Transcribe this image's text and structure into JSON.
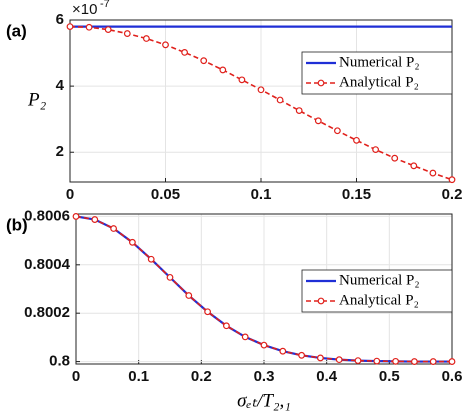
{
  "chart_data": [
    {
      "type": "line",
      "panel_label": "(a)",
      "y_label": "P₂",
      "y_multiplier": "×10",
      "y_multiplier_exp": "-7",
      "x": [
        0,
        0.01,
        0.02,
        0.03,
        0.04,
        0.05,
        0.06,
        0.07,
        0.08,
        0.09,
        0.1,
        0.11,
        0.12,
        0.13,
        0.14,
        0.15,
        0.16,
        0.17,
        0.18,
        0.19,
        0.2
      ],
      "series": [
        {
          "name": "Numerical P₂",
          "color": "#1f2fd6",
          "dash": false,
          "marker": "none",
          "values": [
            5.8,
            5.8,
            5.8,
            5.8,
            5.8,
            5.8,
            5.8,
            5.8,
            5.8,
            5.8,
            5.8,
            5.8,
            5.8,
            5.8,
            5.8,
            5.8,
            5.8,
            5.8,
            5.8,
            5.8,
            5.8
          ]
        },
        {
          "name": "Analytical P₂",
          "color": "#e0201b",
          "dash": true,
          "marker": "circle",
          "values": [
            5.8,
            5.78,
            5.71,
            5.59,
            5.44,
            5.25,
            5.02,
            4.77,
            4.49,
            4.19,
            3.89,
            3.58,
            3.26,
            2.95,
            2.65,
            2.36,
            2.08,
            1.82,
            1.59,
            1.37,
            1.17
          ]
        }
      ],
      "xlim": [
        0,
        0.2
      ],
      "xticks": [
        0,
        0.05,
        0.1,
        0.15,
        0.2
      ],
      "ylim": [
        1.1,
        6
      ],
      "yticks": [
        2,
        4,
        6
      ],
      "grid": true,
      "legend": "upper right"
    },
    {
      "type": "line",
      "panel_label": "(b)",
      "x_label": "σₑₜ/T₂,₁",
      "x": [
        0,
        0.03,
        0.06,
        0.09,
        0.12,
        0.15,
        0.18,
        0.21,
        0.24,
        0.27,
        0.3,
        0.33,
        0.36,
        0.39,
        0.42,
        0.45,
        0.48,
        0.51,
        0.54,
        0.57,
        0.6
      ],
      "series": [
        {
          "name": "Numerical P₂",
          "color": "#1f2fd6",
          "dash": false,
          "marker": "none",
          "values": [
            0.8006,
            0.800587,
            0.80055,
            0.800493,
            0.800423,
            0.800348,
            0.800273,
            0.800206,
            0.800148,
            0.800102,
            0.800068,
            0.800043,
            0.800026,
            0.800015,
            0.800008,
            0.800004,
            0.800002,
            0.800001,
            0.8,
            0.8,
            0.8
          ]
        },
        {
          "name": "Analytical P₂",
          "color": "#e0201b",
          "dash": true,
          "marker": "circle",
          "values": [
            0.8006,
            0.800587,
            0.80055,
            0.800493,
            0.800423,
            0.800348,
            0.800273,
            0.800206,
            0.800148,
            0.800102,
            0.800068,
            0.800043,
            0.800026,
            0.800015,
            0.800008,
            0.800004,
            0.800002,
            0.800001,
            0.8,
            0.8,
            0.8
          ]
        }
      ],
      "xlim": [
        0,
        0.6
      ],
      "xticks": [
        0,
        0.1,
        0.2,
        0.3,
        0.4,
        0.5,
        0.6
      ],
      "ylim": [
        0.79999,
        0.80061
      ],
      "yticks": [
        0.8,
        0.8002,
        0.8004,
        0.8006
      ],
      "grid": true,
      "legend": "right"
    }
  ]
}
